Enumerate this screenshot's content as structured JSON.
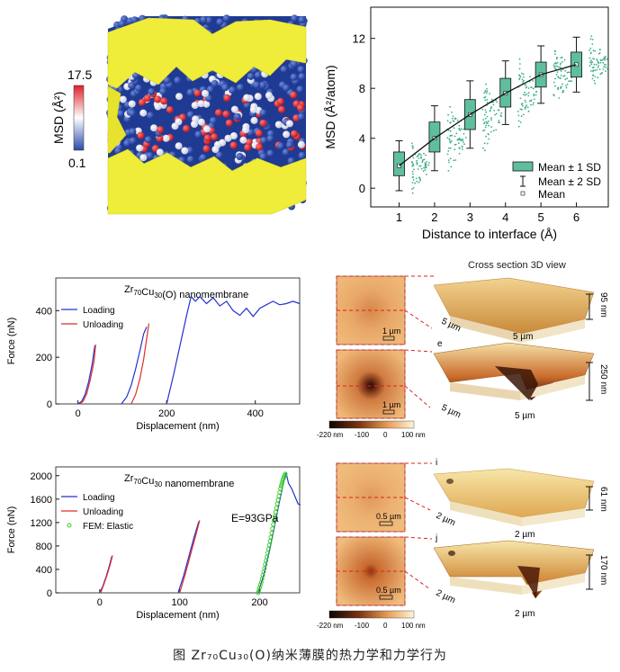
{
  "caption": "图 Zr₇₀Cu₃₀(O)纳米薄膜的热力学和力学行为",
  "panel_a": {
    "colorbar_label": "MSD (Å²)",
    "colorbar_max": "17.5",
    "colorbar_min": "0.1",
    "colors": {
      "high": "#e0222b",
      "mid": "#ffffff",
      "low": "#2b4aa8",
      "surface": "#f0ec3a"
    }
  },
  "panel_b": {
    "legend": [
      "Mean ± 1 SD",
      "Mean ± 2 SD",
      "Mean"
    ],
    "colors": {
      "box": "#5fbf9d",
      "scatter": "#3fae88",
      "line": "#111111"
    }
  },
  "panel_d": {
    "title_base": "Zr",
    "title_sub1": "70",
    "title_mid": "Cu",
    "title_sub2": "30",
    "title_tail": "(O) nanomembrane",
    "legend": [
      "Loading",
      "Unloading"
    ],
    "colors": {
      "loading": "#2233cc",
      "unloading": "#e02a2a"
    }
  },
  "panel_g": {
    "title_base": "Zr",
    "title_sub1": "70",
    "title_mid": "Cu",
    "title_sub2": "30",
    "title_tail": " nanomembrane",
    "legend": [
      "Loading",
      "Unloading",
      "FEM: Elastic"
    ],
    "annotation": "E=93GPa",
    "colors": {
      "loading": "#2233cc",
      "unloading": "#e02a2a",
      "fem": "#33cc22"
    }
  },
  "afm_top": {
    "header": "Cross section 3D view",
    "scale1": "1 µm",
    "scale2": "1 µm",
    "colorbar_ticks": [
      "-220 nm",
      "-100",
      "0",
      "100 nm"
    ],
    "label_e": "e",
    "depth1": "95 nm",
    "depth2": "250 nm",
    "xy1a": "5 µm",
    "xy1b": "5 µm",
    "xy2a": "5 µm",
    "xy2b": "5 µm"
  },
  "afm_bottom": {
    "scale1": "0.5 µm",
    "scale2": "0.5 µm",
    "colorbar_ticks": [
      "-220 nm",
      "-100",
      "0",
      "100 nm"
    ],
    "label_i": "i",
    "label_j": "j",
    "depth1": "61 nm",
    "depth2": "170 nm",
    "xy1a": "2 µm",
    "xy1b": "2 µm",
    "xy2a": "2 µm",
    "xy2b": "2 µm"
  },
  "chart_data": [
    {
      "type": "box",
      "xlabel": "Distance to interface (Å)",
      "ylabel": "MSD (Å²/atom)",
      "categories": [
        1,
        2,
        3,
        4,
        5,
        6
      ],
      "xticks": [
        1,
        2,
        3,
        4,
        5,
        6
      ],
      "yticks": [
        0,
        4,
        8,
        12
      ],
      "xlim": [
        0.2,
        6.9
      ],
      "ylim": [
        -1.5,
        14.5
      ],
      "mean": [
        1.8,
        4.0,
        5.9,
        7.6,
        9.1,
        9.9
      ],
      "q1": [
        1.0,
        2.9,
        4.7,
        6.5,
        8.1,
        8.9
      ],
      "q3": [
        2.9,
        5.3,
        7.1,
        8.8,
        10.1,
        10.9
      ],
      "low_2sd": [
        -0.2,
        1.4,
        3.2,
        5.1,
        6.8,
        7.7
      ],
      "high_2sd": [
        3.8,
        6.6,
        8.6,
        10.2,
        11.4,
        12.1
      ],
      "legend": [
        "Mean ± 1 SD",
        "Mean ± 2 SD",
        "Mean"
      ]
    },
    {
      "type": "line",
      "title": "Zr70Cu30(O) nanomembrane",
      "xlabel": "Displacement (nm)",
      "ylabel": "Force (nN)",
      "xticks": [
        0,
        200,
        400
      ],
      "yticks": [
        0,
        200,
        400
      ],
      "xlim": [
        -50,
        500
      ],
      "ylim": [
        0,
        540
      ],
      "series": [
        {
          "name": "Loading",
          "x": [
            0,
            8,
            16,
            24,
            32,
            38
          ],
          "y": [
            0,
            10,
            40,
            95,
            170,
            250
          ]
        },
        {
          "name": "Unloading",
          "x": [
            4,
            12,
            20,
            28,
            36,
            40
          ],
          "y": [
            0,
            12,
            45,
            105,
            180,
            255
          ]
        },
        {
          "name": "Loading",
          "x": [
            98,
            110,
            120,
            130,
            140,
            148,
            155
          ],
          "y": [
            0,
            30,
            80,
            150,
            230,
            300,
            330
          ]
        },
        {
          "name": "Unloading",
          "x": [
            120,
            130,
            140,
            148,
            155,
            160
          ],
          "y": [
            0,
            40,
            110,
            190,
            280,
            345
          ]
        },
        {
          "name": "Loading",
          "x": [
            200,
            215,
            230,
            245,
            255,
            265,
            275,
            290,
            305,
            320,
            335,
            350,
            365,
            380,
            395,
            410,
            425,
            440,
            455,
            470,
            485,
            500
          ],
          "y": [
            0,
            120,
            250,
            380,
            460,
            440,
            460,
            430,
            455,
            420,
            440,
            400,
            380,
            410,
            375,
            410,
            425,
            440,
            425,
            430,
            440,
            430
          ]
        }
      ]
    },
    {
      "type": "line",
      "title": "Zr70Cu30 nanomembrane",
      "xlabel": "Displacement (nm)",
      "ylabel": "Force (nN)",
      "xticks": [
        0,
        100,
        200
      ],
      "yticks": [
        0,
        400,
        800,
        1200,
        1600,
        2000
      ],
      "xlim": [
        -55,
        250
      ],
      "ylim": [
        0,
        2150
      ],
      "annotation": "E=93GPa",
      "series": [
        {
          "name": "Loading",
          "x": [
            0,
            4,
            8,
            12,
            15
          ],
          "y": [
            0,
            120,
            280,
            460,
            620
          ]
        },
        {
          "name": "Unloading",
          "x": [
            1,
            5,
            9,
            13,
            16
          ],
          "y": [
            0,
            140,
            300,
            480,
            640
          ]
        },
        {
          "name": "Loading",
          "x": [
            98,
            105,
            112,
            118,
            124
          ],
          "y": [
            0,
            300,
            650,
            950,
            1220
          ]
        },
        {
          "name": "Unloading",
          "x": [
            100,
            107,
            114,
            120,
            125
          ],
          "y": [
            0,
            320,
            680,
            980,
            1240
          ]
        },
        {
          "name": "Loading",
          "x": [
            198,
            205,
            212,
            218,
            224,
            230,
            233,
            236,
            240,
            244,
            248,
            251
          ],
          "y": [
            0,
            300,
            700,
            1100,
            1500,
            1900,
            2050,
            1870,
            1780,
            1650,
            1520,
            1500
          ]
        },
        {
          "name": "FEM: Elastic",
          "x": [
            198,
            202,
            206,
            210,
            214,
            218,
            222,
            226,
            229,
            232
          ],
          "y": [
            0,
            180,
            420,
            680,
            950,
            1240,
            1520,
            1780,
            1930,
            2030
          ]
        }
      ]
    }
  ]
}
